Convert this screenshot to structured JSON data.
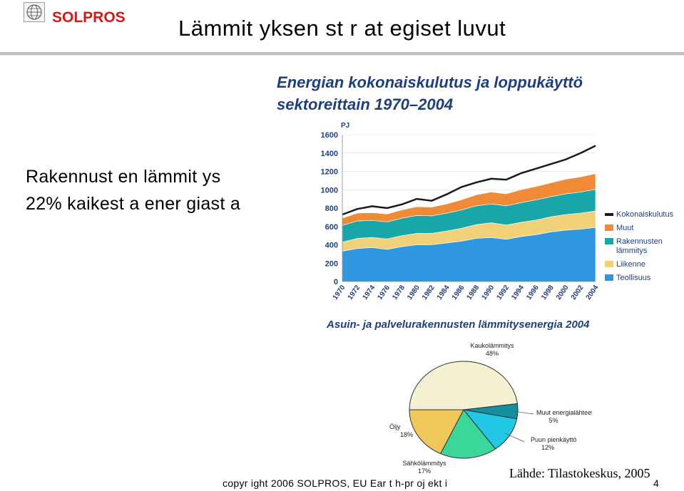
{
  "header": {
    "brand": "SOLPROS",
    "title": "Lämmit yksen st r at egiset luvut"
  },
  "body": {
    "line1": "Rakennust en lämmit ys",
    "line2": "22% kaikest a ener giast a"
  },
  "chart_data": [
    {
      "type": "area",
      "title": "Energian kokonaiskulutus ja loppukäyttö",
      "subtitle": "sektoreittain 1970–2004",
      "ylabel": "PJ",
      "ylim": [
        0,
        1600
      ],
      "yticks": [
        "0",
        "200",
        "400",
        "600",
        "800",
        "1000",
        "1200",
        "1400",
        "1600"
      ],
      "x": [
        1970,
        1972,
        1974,
        1976,
        1978,
        1980,
        1982,
        1984,
        1986,
        1988,
        1990,
        1992,
        1994,
        1996,
        1998,
        2000,
        2002,
        2004
      ],
      "xticks": [
        "1970",
        "1972",
        "1974",
        "1976",
        "1978",
        "1980",
        "1982",
        "1984",
        "1986",
        "1988",
        "1990",
        "1992",
        "1994",
        "1996",
        "1998",
        "2000",
        "2002",
        "2004"
      ],
      "legend_position": "right",
      "series": [
        {
          "name": "Teollisuus",
          "color": "#2e97e0",
          "values": [
            330,
            360,
            370,
            350,
            380,
            400,
            400,
            420,
            440,
            470,
            480,
            460,
            490,
            510,
            540,
            560,
            570,
            590
          ]
        },
        {
          "name": "Liikenne",
          "color": "#f1d07a",
          "values": [
            100,
            110,
            110,
            115,
            120,
            125,
            125,
            130,
            140,
            150,
            160,
            155,
            155,
            160,
            165,
            170,
            175,
            180
          ]
        },
        {
          "name": "Rakennusten lämmitys",
          "color": "#19a6a8",
          "values": [
            180,
            190,
            185,
            185,
            190,
            195,
            190,
            195,
            200,
            205,
            205,
            210,
            215,
            220,
            220,
            225,
            230,
            235
          ]
        },
        {
          "name": "Muut",
          "color": "#ef8a36",
          "values": [
            80,
            85,
            85,
            85,
            90,
            95,
            95,
            100,
            110,
            120,
            130,
            130,
            140,
            145,
            150,
            160,
            165,
            170
          ]
        }
      ],
      "total": {
        "name": "Kokonaiskulutus",
        "color": "#1a1a1a",
        "values": [
          730,
          790,
          820,
          800,
          840,
          900,
          880,
          950,
          1030,
          1080,
          1120,
          1110,
          1180,
          1230,
          1280,
          1330,
          1400,
          1480
        ]
      }
    },
    {
      "type": "pie",
      "title": "Asuin- ja palvelurakennusten lämmitysenergia 2004",
      "slices": [
        {
          "name": "Kaukolämmitys",
          "label": "48%",
          "value": 48,
          "color": "#f3f1d2"
        },
        {
          "name": "Muut energialähteet",
          "label": "5%",
          "value": 5,
          "color": "#148f9b"
        },
        {
          "name": "Puun pienkäyttö",
          "label": "12%",
          "value": 12,
          "color": "#22c7e6"
        },
        {
          "name": "Sähkölämmitys",
          "label": "17%",
          "value": 17,
          "color": "#3ad69a"
        },
        {
          "name": "Öljy",
          "label": "18%",
          "value": 18,
          "color": "#f0c75a"
        }
      ]
    }
  ],
  "footer": {
    "copyright": "copyr ight 2006 SOLPROS, EU Ear t h-pr oj ekt i",
    "source": "Lähde: Tilastokeskus, 2005",
    "page": "4"
  }
}
